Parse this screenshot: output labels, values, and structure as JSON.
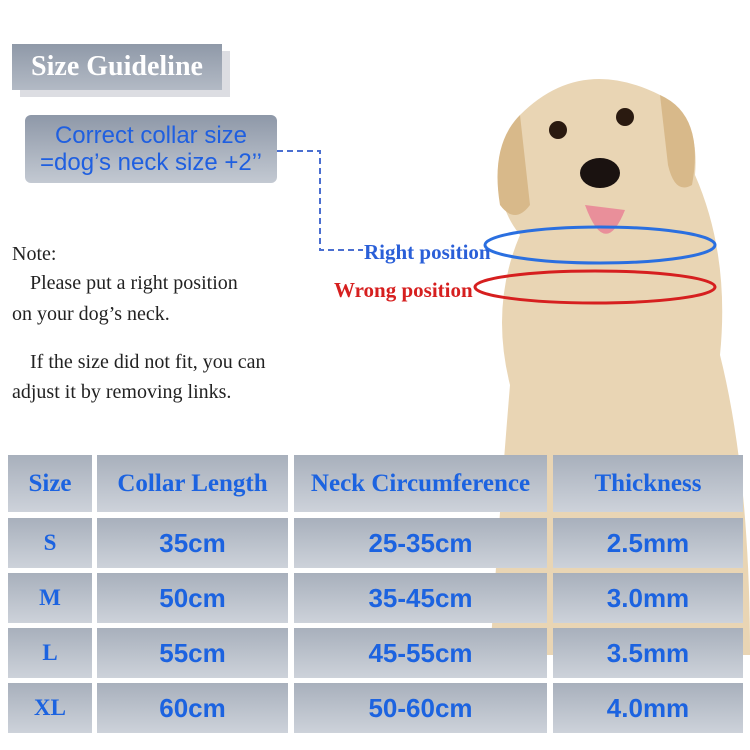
{
  "title": "Size Guideline",
  "formula": {
    "line1": "Correct collar size",
    "line2": "=dog’s neck size +2’’"
  },
  "note": {
    "label": "Note:",
    "line1": "Please put a right position",
    "line2": "on your dog’s neck.",
    "line3": "If the size did not fit, you can",
    "line4": "adjust it by removing links."
  },
  "positions": {
    "right": "Right position",
    "wrong": "Wrong position",
    "right_color": "#2a5fd8",
    "wrong_color": "#d61f1f"
  },
  "table": {
    "headers": [
      "Size",
      "Collar Length",
      "Neck Circumference",
      "Thickness"
    ],
    "rows": [
      [
        "S",
        "35cm",
        "25-35cm",
        "2.5mm"
      ],
      [
        "M",
        "50cm",
        "35-45cm",
        "3.0mm"
      ],
      [
        "L",
        "55cm",
        "45-55cm",
        "3.5mm"
      ],
      [
        "XL",
        "60cm",
        "50-60cm",
        "4.0mm"
      ]
    ]
  },
  "colors": {
    "text_blue": "#1c63e0",
    "cell_gray": "#b3bac5"
  }
}
